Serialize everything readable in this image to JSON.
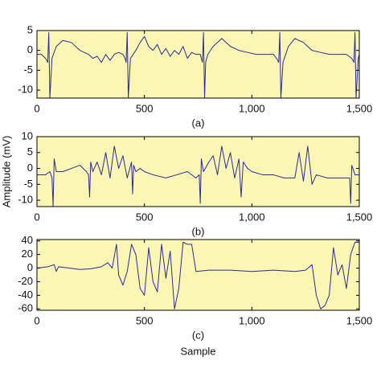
{
  "chart_data": [
    {
      "type": "line",
      "label": "(a)",
      "color": "#2b2b9c",
      "background": "#fbf6b4",
      "xlim": [
        0,
        1500
      ],
      "ylim": [
        -12,
        5
      ],
      "xticks": [
        0,
        500,
        {
          "value": 1000,
          "label": "1,000"
        },
        {
          "value": 1500,
          "label": "1,500"
        }
      ],
      "yticks": [
        5,
        0,
        -5,
        -10
      ],
      "x": [
        0,
        20,
        40,
        50,
        55,
        60,
        70,
        90,
        120,
        160,
        200,
        240,
        260,
        280,
        300,
        320,
        340,
        360,
        380,
        400,
        410,
        415,
        420,
        425,
        435,
        460,
        480,
        500,
        520,
        540,
        560,
        580,
        600,
        620,
        640,
        660,
        680,
        700,
        720,
        740,
        760,
        770,
        775,
        780,
        785,
        795,
        820,
        860,
        900,
        940,
        980,
        1020,
        1060,
        1100,
        1115,
        1125,
        1130,
        1135,
        1145,
        1170,
        1200,
        1240,
        1280,
        1320,
        1360,
        1400,
        1440,
        1465,
        1475,
        1480,
        1485,
        1495,
        1500
      ],
      "values": [
        -1,
        -1,
        -2,
        -3,
        4.5,
        -12,
        -2,
        1,
        2.5,
        2,
        0,
        -1,
        -2,
        -1.5,
        -3,
        -1,
        -2.5,
        -1,
        -0.5,
        -1,
        -2,
        -3,
        4.5,
        -12,
        -2,
        0,
        2,
        3.5,
        1,
        0,
        1.5,
        -1,
        0.5,
        -1.5,
        0,
        -1,
        1,
        -2,
        -0.5,
        -1,
        -1,
        -3,
        4.5,
        -12,
        -3,
        -1,
        1,
        3,
        1,
        0,
        -0.5,
        -1,
        -1,
        -1,
        -2,
        -3,
        4.5,
        -12,
        -3,
        1,
        3,
        2,
        0,
        -0.5,
        -1,
        -1,
        -1,
        -2,
        -3,
        4.5,
        -12,
        -2,
        -1
      ]
    },
    {
      "type": "line",
      "label": "(b)",
      "ylabel": "Amplitude (mV)",
      "color": "#2b2b9c",
      "background": "#fbf6b4",
      "xlim": [
        0,
        1500
      ],
      "ylim": [
        -12,
        10
      ],
      "xticks": [
        0,
        500,
        {
          "value": 1000,
          "label": "1,000"
        },
        {
          "value": 1500,
          "label": "1,500"
        }
      ],
      "yticks": [
        10,
        5,
        0,
        -5,
        -10
      ],
      "x": [
        0,
        40,
        60,
        70,
        75,
        80,
        90,
        120,
        160,
        200,
        230,
        240,
        245,
        250,
        260,
        280,
        300,
        320,
        340,
        360,
        380,
        400,
        420,
        440,
        445,
        450,
        460,
        480,
        500,
        540,
        600,
        650,
        700,
        740,
        755,
        760,
        765,
        775,
        800,
        820,
        840,
        860,
        880,
        900,
        920,
        940,
        950,
        960,
        980,
        1000,
        1050,
        1100,
        1150,
        1200,
        1220,
        1240,
        1260,
        1280,
        1300,
        1350,
        1400,
        1440,
        1455,
        1460,
        1465,
        1480,
        1500
      ],
      "values": [
        -2,
        -2,
        -1,
        -3,
        -12,
        3,
        -1,
        -1,
        0,
        1,
        -1,
        -2,
        -9,
        2,
        -1,
        2,
        -2,
        5,
        -3,
        7,
        0,
        4,
        -3,
        2,
        -8,
        1,
        -1,
        0,
        -1,
        -2,
        -3,
        -2,
        -1,
        -3,
        -2,
        -11,
        3,
        -1,
        2,
        4,
        -2,
        7,
        0,
        5,
        -3,
        3,
        -9,
        2,
        0,
        -1,
        -2,
        -2,
        -3,
        -3,
        5,
        -4,
        7,
        -5,
        -2,
        -3,
        -3,
        -3,
        -3,
        -11,
        1,
        -2,
        -2
      ]
    },
    {
      "type": "line",
      "label": "(c)",
      "xlabel": "Sample",
      "color": "#2b2b9c",
      "background": "#fbf6b4",
      "xlim": [
        0,
        1500
      ],
      "ylim": [
        -62,
        42
      ],
      "xticks": [
        0,
        500,
        {
          "value": 1000,
          "label": "1,000"
        },
        {
          "value": 1500,
          "label": "1,500"
        }
      ],
      "yticks": [
        40,
        20,
        0,
        -20,
        -40,
        -60
      ],
      "x": [
        0,
        50,
        80,
        90,
        100,
        150,
        200,
        250,
        300,
        330,
        350,
        370,
        380,
        400,
        420,
        440,
        460,
        480,
        500,
        520,
        540,
        560,
        580,
        600,
        620,
        640,
        660,
        680,
        700,
        720,
        740,
        800,
        900,
        1000,
        1100,
        1200,
        1250,
        1280,
        1300,
        1320,
        1340,
        1360,
        1380,
        1400,
        1420,
        1440,
        1460,
        1480,
        1490,
        1500
      ],
      "values": [
        0,
        2,
        5,
        -5,
        2,
        0,
        -2,
        -1,
        2,
        8,
        0,
        35,
        -10,
        -25,
        -5,
        35,
        20,
        -30,
        -40,
        30,
        -20,
        -35,
        35,
        -15,
        25,
        -60,
        -30,
        38,
        35,
        35,
        -5,
        -3,
        -3,
        -5,
        -3,
        -5,
        -3,
        5,
        -40,
        -60,
        -55,
        -40,
        30,
        -10,
        5,
        -30,
        20,
        38,
        38,
        38
      ]
    }
  ]
}
